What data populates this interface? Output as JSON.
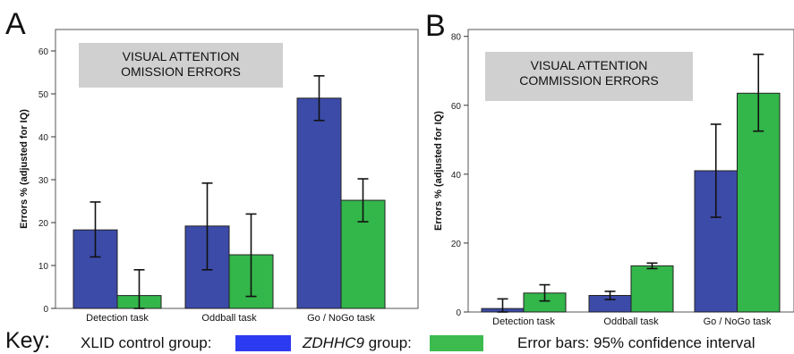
{
  "colors": {
    "control": "#3C4BA8",
    "zdhhc9": "#33B64A",
    "box": "#D0D0D0",
    "key_control": "#2D3BF0",
    "key_zdhhc9": "#3DBB4F"
  },
  "chart_data": [
    {
      "type": "bar",
      "panel_letter": "A",
      "box_title": [
        "VISUAL ATTENTION",
        "OMISSION ERRORS"
      ],
      "ylabel": "Errors % (adjusted for IQ)",
      "ylim": [
        0,
        65
      ],
      "yticks": [
        0,
        10,
        20,
        30,
        40,
        50,
        60
      ],
      "categories": [
        "Detection task",
        "Oddball task",
        "Go / NoGo task"
      ],
      "series": [
        {
          "values": [
            18.3,
            19.2,
            49.0
          ],
          "ci_low": [
            12.0,
            9.0,
            43.8
          ],
          "ci_high": [
            24.8,
            29.2,
            54.2
          ]
        },
        {
          "values": [
            3.0,
            12.5,
            25.2
          ],
          "ci_low": [
            0,
            2.8,
            20.2
          ],
          "ci_high": [
            9.0,
            22.0,
            30.2
          ]
        }
      ]
    },
    {
      "type": "bar",
      "panel_letter": "B",
      "box_title": [
        "VISUAL ATTENTION",
        "COMMISSION ERRORS"
      ],
      "ylabel": "Errors % (adjusted for IQ)",
      "ylim": [
        0,
        82
      ],
      "yticks": [
        0,
        20,
        40,
        60,
        80
      ],
      "categories": [
        "Detection task",
        "Oddball task",
        "Go / NoGo task"
      ],
      "series": [
        {
          "values": [
            1.0,
            4.8,
            41.0
          ],
          "ci_low": [
            0,
            3.6,
            27.5
          ],
          "ci_high": [
            3.8,
            6.0,
            54.5
          ]
        },
        {
          "values": [
            5.5,
            13.4,
            63.5
          ],
          "ci_low": [
            3.2,
            12.6,
            52.5
          ],
          "ci_high": [
            7.9,
            14.2,
            74.8
          ]
        }
      ]
    }
  ],
  "key": {
    "label": "Key:",
    "control_text": "XLID control group:",
    "zdhhc9_text": "ZDHHC9",
    "zdhhc9_suffix": " group:",
    "errorbars_text": "Error bars: 95% confidence interval"
  }
}
